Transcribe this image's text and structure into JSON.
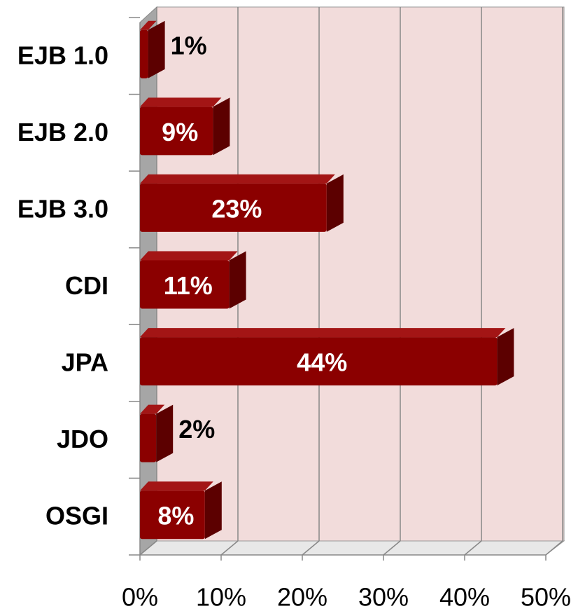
{
  "chart_data": {
    "type": "bar",
    "orientation": "horizontal",
    "categories": [
      "EJB 1.0",
      "EJB 2.0",
      "EJB 3.0",
      "CDI",
      "JPA",
      "JDO",
      "OSGI"
    ],
    "values": [
      1,
      9,
      23,
      11,
      44,
      2,
      8
    ],
    "value_labels": [
      "1%",
      "9%",
      "23%",
      "11%",
      "44%",
      "2%",
      "8%"
    ],
    "color": "#8b0000",
    "xlim": [
      0,
      50
    ],
    "xticks": [
      {
        "value": 0,
        "label": "0%"
      },
      {
        "value": 10,
        "label": "10%"
      },
      {
        "value": 20,
        "label": "20%"
      },
      {
        "value": 30,
        "label": "30%"
      },
      {
        "value": 40,
        "label": "40%"
      },
      {
        "value": 50,
        "label": "50%"
      }
    ],
    "grid": true
  }
}
